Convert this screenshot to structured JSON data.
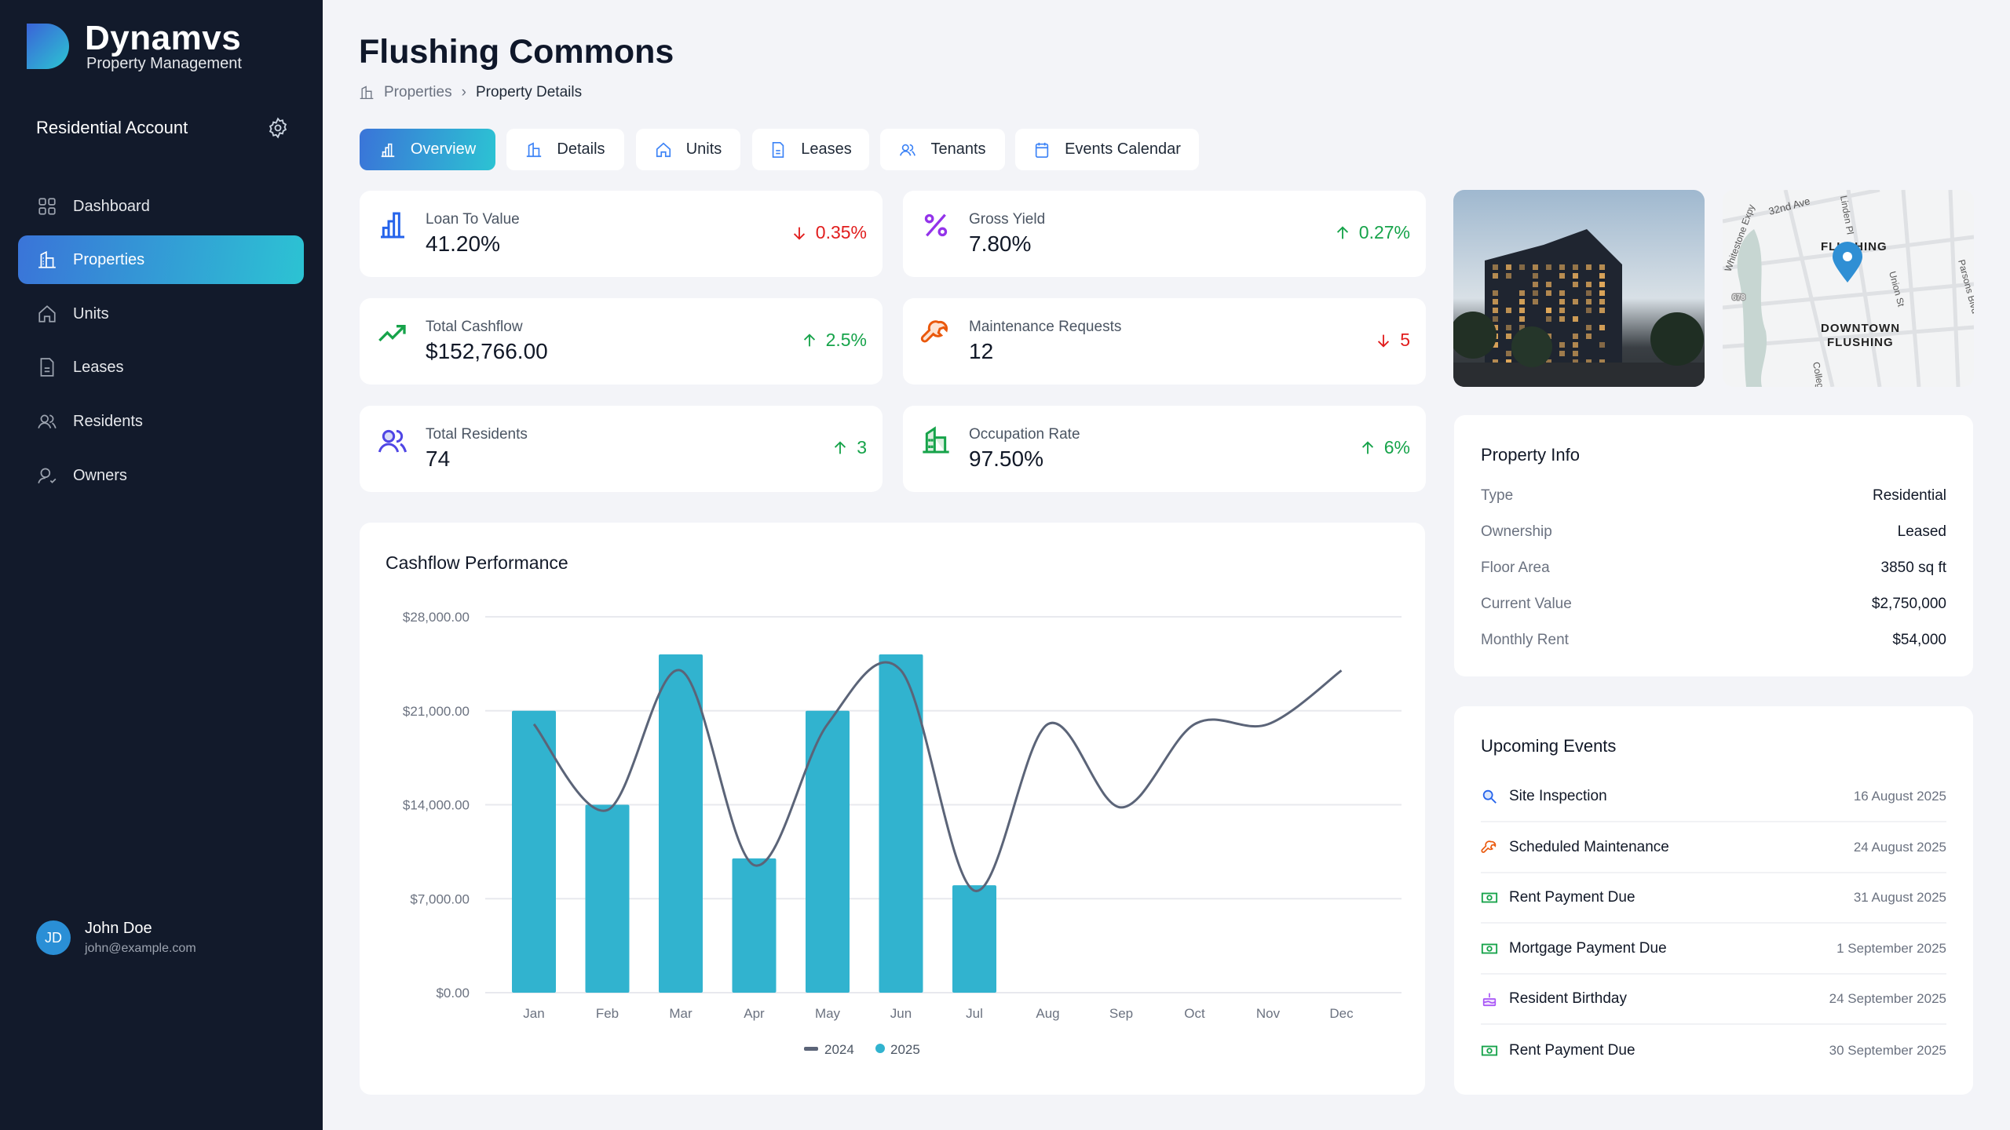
{
  "brand": {
    "name": "Dynamvs",
    "subtitle": "Property Management"
  },
  "account": {
    "label": "Residential Account"
  },
  "nav": [
    {
      "label": "Dashboard",
      "icon": "grid-icon"
    },
    {
      "label": "Properties",
      "icon": "building-icon",
      "active": true
    },
    {
      "label": "Units",
      "icon": "home-icon"
    },
    {
      "label": "Leases",
      "icon": "document-icon"
    },
    {
      "label": "Residents",
      "icon": "users-icon"
    },
    {
      "label": "Owners",
      "icon": "user-check-icon"
    }
  ],
  "user": {
    "initials": "JD",
    "name": "John Doe",
    "email": "john@example.com"
  },
  "page": {
    "title": "Flushing Commons",
    "breadcrumb": [
      "Properties",
      "Property Details"
    ]
  },
  "tabs": [
    {
      "label": "Overview",
      "active": true
    },
    {
      "label": "Details"
    },
    {
      "label": "Units"
    },
    {
      "label": "Leases"
    },
    {
      "label": "Tenants"
    },
    {
      "label": "Events Calendar"
    }
  ],
  "kpis": [
    {
      "label": "Loan To Value",
      "value": "41.20%",
      "change": "0.35%",
      "dir": "down"
    },
    {
      "label": "Gross Yield",
      "value": "7.80%",
      "change": "0.27%",
      "dir": "up"
    },
    {
      "label": "Total Cashflow",
      "value": "$152,766.00",
      "change": "2.5%",
      "dir": "up"
    },
    {
      "label": "Maintenance Requests",
      "value": "12",
      "change": "5",
      "dir": "down"
    },
    {
      "label": "Total Residents",
      "value": "74",
      "change": "3",
      "dir": "up"
    },
    {
      "label": "Occupation Rate",
      "value": "97.50%",
      "change": "6%",
      "dir": "up"
    }
  ],
  "map": {
    "labels": [
      "32nd Ave",
      "Linden Pl",
      "FLUSHING",
      "DOWNTOWN",
      "FLUSHING",
      "Union St",
      "Whitestone Expy",
      "678",
      "Parsons Blvd",
      "College"
    ]
  },
  "property_info": {
    "title": "Property Info",
    "rows": [
      {
        "k": "Type",
        "v": "Residential"
      },
      {
        "k": "Ownership",
        "v": "Leased"
      },
      {
        "k": "Floor Area",
        "v": "3850 sq ft"
      },
      {
        "k": "Current Value",
        "v": "$2,750,000"
      },
      {
        "k": "Monthly Rent",
        "v": "$54,000"
      }
    ]
  },
  "events": {
    "title": "Upcoming Events",
    "items": [
      {
        "name": "Site Inspection",
        "date": "16 August 2025",
        "icon": "search"
      },
      {
        "name": "Scheduled Maintenance",
        "date": "24 August 2025",
        "icon": "wrench"
      },
      {
        "name": "Rent Payment Due",
        "date": "31 August 2025",
        "icon": "money"
      },
      {
        "name": "Mortgage Payment Due",
        "date": "1 September 2025",
        "icon": "money"
      },
      {
        "name": "Resident Birthday",
        "date": "24 September 2025",
        "icon": "cake"
      },
      {
        "name": "Rent Payment Due",
        "date": "30 September 2025",
        "icon": "money"
      }
    ]
  },
  "chart_data": {
    "type": "bar+line",
    "title": "Cashflow Performance",
    "categories": [
      "Jan",
      "Feb",
      "Mar",
      "Apr",
      "May",
      "Jun",
      "Jul",
      "Aug",
      "Sep",
      "Oct",
      "Nov",
      "Dec"
    ],
    "ylim": [
      0,
      28000
    ],
    "yticks": [
      "$0.00",
      "$7,000.00",
      "$14,000.00",
      "$21,000.00",
      "$28,000.00"
    ],
    "series": [
      {
        "name": "2024",
        "type": "line",
        "color": "#5b6478",
        "values": [
          20000,
          13600,
          24000,
          9500,
          20000,
          24000,
          7600,
          20000,
          13800,
          20000,
          20000,
          24000
        ]
      },
      {
        "name": "2025",
        "type": "bar",
        "color": "#31b3cf",
        "values": [
          21000,
          14000,
          25200,
          10000,
          21000,
          25200,
          8000,
          null,
          null,
          null,
          null,
          null
        ]
      }
    ],
    "legend": "bottom"
  }
}
